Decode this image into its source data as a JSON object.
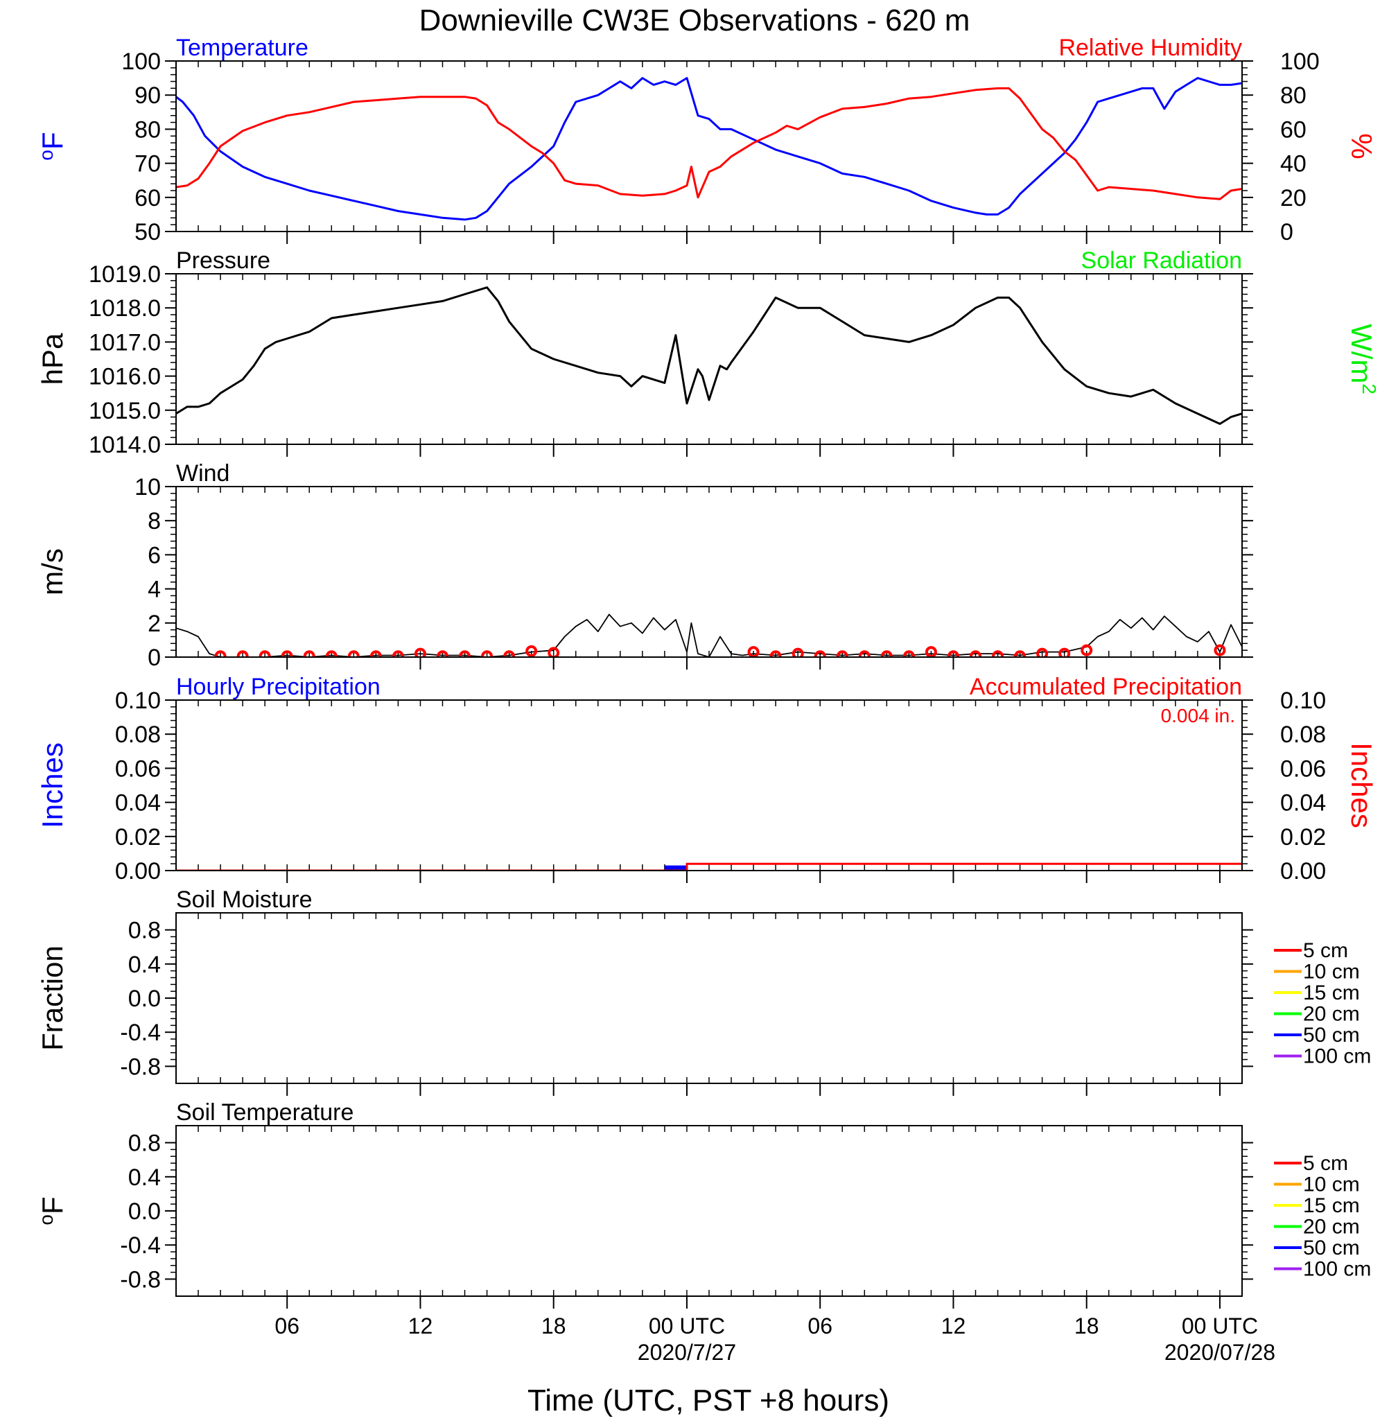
{
  "title": "Downieville CW3E Observations - 620 m",
  "x_axis": {
    "label": "Time (UTC, PST +8 hours)",
    "ticks": [
      {
        "hour": 6,
        "label": "06",
        "date": ""
      },
      {
        "hour": 12,
        "label": "12",
        "date": ""
      },
      {
        "hour": 18,
        "label": "18",
        "date": ""
      },
      {
        "hour": 24,
        "label": "00 UTC",
        "date": "2020/7/27"
      },
      {
        "hour": 30,
        "label": "06",
        "date": ""
      },
      {
        "hour": 36,
        "label": "12",
        "date": ""
      },
      {
        "hour": 42,
        "label": "18",
        "date": ""
      },
      {
        "hour": 48,
        "label": "00 UTC",
        "date": "2020/07/28"
      }
    ]
  },
  "colors": {
    "temperature": "#0000ff",
    "humidity": "#ff0000",
    "solar": "#00ee00",
    "axis": "#000000"
  },
  "chart_data": [
    {
      "type": "line",
      "panel": "temperature-humidity",
      "xlim": [
        1,
        49
      ],
      "left_title": "Temperature",
      "right_title": "Relative Humidity",
      "ylabel": "oF",
      "ylabel_right": "%",
      "ylim": [
        50,
        100
      ],
      "yticks": [
        "50",
        "60",
        "70",
        "80",
        "90",
        "100"
      ],
      "ylim_right": [
        0,
        100
      ],
      "yticks_right": [
        "0",
        "20",
        "40",
        "60",
        "80",
        "100"
      ],
      "series": [
        {
          "name": "Temperature",
          "axis": "left",
          "color": "#0000ff",
          "x": [
            1,
            1.3,
            1.8,
            2.3,
            3,
            4,
            5,
            6,
            7,
            8,
            9,
            10,
            11,
            12,
            13,
            14,
            14.5,
            15,
            15.5,
            16,
            17,
            18,
            18.5,
            19,
            20,
            20.5,
            21,
            21.5,
            22,
            22.5,
            23,
            23.5,
            24,
            24.5,
            25,
            25.5,
            26,
            27,
            28,
            29,
            30,
            31,
            32,
            33,
            34,
            35,
            36,
            37,
            37.5,
            38,
            38.5,
            39,
            40,
            41,
            41.5,
            42,
            42.5,
            43,
            44,
            44.5,
            45,
            45.5,
            46,
            46.5,
            47,
            47.5,
            48,
            48.5,
            49
          ],
          "y": [
            89.5,
            88,
            84,
            78,
            73.5,
            69,
            66,
            64,
            62,
            60.5,
            59,
            57.5,
            56,
            55,
            54,
            53.5,
            54,
            56,
            60,
            64,
            69,
            75,
            82,
            88,
            90,
            92,
            94,
            92,
            95,
            93,
            94,
            93,
            95,
            84,
            83,
            80,
            80,
            77,
            74,
            72,
            70,
            67,
            66,
            64,
            62,
            59,
            57,
            55.5,
            55,
            55,
            57,
            61,
            67,
            73,
            77,
            82,
            88,
            89,
            91,
            92,
            92,
            86,
            91,
            93,
            95,
            94,
            93,
            93,
            93.5
          ]
        },
        {
          "name": "Relative Humidity",
          "axis": "right",
          "color": "#ff0000",
          "x": [
            1,
            1.5,
            2,
            2.5,
            3,
            4,
            5,
            6,
            7,
            8,
            9,
            10,
            11,
            12,
            13,
            14,
            14.5,
            15,
            15.5,
            16,
            17,
            17.5,
            18,
            18.5,
            19,
            20,
            21,
            22,
            23,
            23.5,
            24,
            24.2,
            24.5,
            25,
            25.5,
            26,
            27,
            28,
            28.5,
            29,
            30,
            31,
            32,
            33,
            34,
            35,
            36,
            37,
            38,
            38.5,
            39,
            40,
            40.5,
            41,
            41.5,
            42,
            42.5,
            43,
            44,
            45,
            46,
            47,
            48,
            48.5,
            49
          ],
          "y": [
            26,
            27,
            31,
            40,
            50,
            59,
            64,
            68,
            70,
            73,
            76,
            77,
            78,
            79,
            79,
            79,
            78,
            74,
            64,
            60,
            50,
            46,
            40,
            30,
            28,
            27,
            22,
            21,
            22,
            24,
            27,
            38,
            20,
            35,
            38,
            44,
            52,
            58,
            62,
            60,
            67,
            72,
            73,
            75,
            78,
            79,
            81,
            83,
            84,
            84,
            78,
            60,
            55,
            47,
            42,
            33,
            24,
            26,
            25,
            24,
            22,
            20,
            19,
            24,
            25
          ]
        }
      ]
    },
    {
      "type": "line",
      "panel": "pressure",
      "xlim": [
        1,
        49
      ],
      "left_title": "Pressure",
      "right_title": "Solar Radiation",
      "ylabel": "hPa",
      "ylabel_right": "W/m2",
      "ylim": [
        1014.0,
        1019.0
      ],
      "yticks": [
        "1014.0",
        "1015.0",
        "1016.0",
        "1017.0",
        "1018.0",
        "1019.0"
      ],
      "series": [
        {
          "name": "Pressure",
          "axis": "left",
          "color": "#000000",
          "x": [
            1,
            1.5,
            2,
            2.5,
            3,
            3.5,
            4,
            4.5,
            5,
            5.5,
            6,
            7,
            8,
            9,
            10,
            11,
            12,
            13,
            14,
            15,
            15.5,
            16,
            17,
            18,
            19,
            20,
            21,
            21.5,
            22,
            23,
            23.5,
            24,
            24.5,
            24.7,
            25,
            25.5,
            25.8,
            26,
            27,
            28,
            29,
            30,
            31,
            32,
            33,
            34,
            35,
            36,
            37,
            38,
            38.5,
            39,
            40,
            41,
            42,
            43,
            44,
            45,
            46,
            47,
            48,
            48.5,
            49
          ],
          "y": [
            1014.9,
            1015.1,
            1015.1,
            1015.2,
            1015.5,
            1015.7,
            1015.9,
            1016.3,
            1016.8,
            1017.0,
            1017.1,
            1017.3,
            1017.7,
            1017.8,
            1017.9,
            1018.0,
            1018.1,
            1018.2,
            1018.4,
            1018.6,
            1018.2,
            1017.6,
            1016.8,
            1016.5,
            1016.3,
            1016.1,
            1016.0,
            1015.7,
            1016.0,
            1015.8,
            1017.2,
            1015.2,
            1016.2,
            1016.0,
            1015.3,
            1016.3,
            1016.2,
            1016.4,
            1017.3,
            1018.3,
            1018.0,
            1018.0,
            1017.6,
            1017.2,
            1017.1,
            1017.0,
            1017.2,
            1017.5,
            1018.0,
            1018.3,
            1018.3,
            1018.0,
            1017.0,
            1016.2,
            1015.7,
            1015.5,
            1015.4,
            1015.6,
            1015.2,
            1014.9,
            1014.6,
            1014.8,
            1014.9
          ]
        }
      ]
    },
    {
      "type": "line",
      "panel": "wind",
      "xlim": [
        1,
        49
      ],
      "left_title": "Wind",
      "ylabel": "m/s",
      "ylim": [
        0,
        10
      ],
      "yticks": [
        "0",
        "2",
        "4",
        "6",
        "8",
        "10"
      ],
      "series": [
        {
          "name": "Wind",
          "axis": "left",
          "color": "#000000",
          "x": [
            1,
            1.5,
            2,
            2.5,
            3,
            4,
            5,
            6,
            7,
            8,
            9,
            10,
            11,
            12,
            13,
            14,
            15,
            16,
            17,
            18,
            18.5,
            19,
            19.5,
            20,
            20.5,
            21,
            21.5,
            22,
            22.5,
            23,
            23.5,
            24,
            24.2,
            24.5,
            25,
            25.5,
            26,
            26.5,
            27,
            28,
            29,
            30,
            31,
            32,
            33,
            34,
            35,
            36,
            37,
            38,
            39,
            40,
            41,
            42,
            42.5,
            43,
            43.5,
            44,
            44.5,
            45,
            45.5,
            46,
            46.5,
            47,
            47.5,
            48,
            48.5,
            49
          ],
          "y": [
            1.7,
            1.5,
            1.2,
            0.2,
            0.0,
            0.0,
            0.0,
            0.1,
            0.0,
            0.1,
            0.0,
            0.1,
            0.1,
            0.2,
            0.1,
            0.1,
            0.0,
            0.1,
            0.3,
            0.4,
            1.2,
            1.8,
            2.2,
            1.5,
            2.5,
            1.8,
            2.0,
            1.4,
            2.3,
            1.6,
            2.2,
            0.3,
            2.0,
            0.2,
            0.0,
            1.2,
            0.2,
            0.1,
            0.2,
            0.1,
            0.3,
            0.2,
            0.1,
            0.2,
            0.1,
            0.1,
            0.2,
            0.1,
            0.2,
            0.2,
            0.1,
            0.3,
            0.3,
            0.6,
            1.2,
            1.5,
            2.2,
            1.7,
            2.3,
            1.6,
            2.4,
            1.8,
            1.2,
            0.9,
            1.5,
            0.3,
            1.9,
            0.6
          ]
        },
        {
          "name": "Hourly wind",
          "axis": "left",
          "color": "#ff0000",
          "x": [
            3,
            4,
            5,
            6,
            7,
            8,
            9,
            10,
            11,
            12,
            13,
            14,
            15,
            16,
            17,
            18,
            27,
            28,
            29,
            30,
            31,
            32,
            33,
            34,
            35,
            36,
            37,
            38,
            39,
            40,
            41,
            42,
            48
          ],
          "y": [
            0.05,
            0.05,
            0.05,
            0.05,
            0.05,
            0.05,
            0.05,
            0.05,
            0.05,
            0.2,
            0.05,
            0.05,
            0.05,
            0.05,
            0.35,
            0.25,
            0.3,
            0.05,
            0.2,
            0.05,
            0.05,
            0.05,
            0.05,
            0.05,
            0.3,
            0.05,
            0.05,
            0.05,
            0.05,
            0.2,
            0.2,
            0.4,
            0.4
          ]
        }
      ]
    },
    {
      "type": "line",
      "panel": "precipitation",
      "xlim": [
        1,
        49
      ],
      "left_title": "Hourly Precipitation",
      "right_title": "Accumulated Precipitation",
      "annotation": "0.004 in.",
      "ylabel": "Inches",
      "ylabel_right": "Inches",
      "ylim": [
        0.0,
        0.1
      ],
      "yticks": [
        "0.00",
        "0.02",
        "0.04",
        "0.06",
        "0.08",
        "0.10"
      ],
      "ylim_right": [
        0.0,
        0.1
      ],
      "yticks_right": [
        "0.00",
        "0.02",
        "0.04",
        "0.06",
        "0.08",
        "0.10"
      ],
      "series": [
        {
          "name": "Hourly Precipitation",
          "axis": "left",
          "color": "#0000ff",
          "x": [
            23.5
          ],
          "y": [
            0.003
          ]
        },
        {
          "name": "Accumulated Precipitation",
          "axis": "right",
          "color": "#ff0000",
          "x": [
            1,
            24,
            24,
            49
          ],
          "y": [
            0.0,
            0.0,
            0.004,
            0.004
          ]
        }
      ]
    },
    {
      "type": "line",
      "panel": "soil-moisture",
      "xlim": [
        1,
        49
      ],
      "left_title": "Soil Moisture",
      "ylabel": "Fraction",
      "ylim": [
        -1.0,
        1.0
      ],
      "yticks": [
        "-0.8",
        "-0.4",
        "0.0",
        "0.4",
        "0.8"
      ],
      "legend": [
        {
          "label": "5 cm",
          "color": "#ff0000"
        },
        {
          "label": "10 cm",
          "color": "#ffa500"
        },
        {
          "label": "15 cm",
          "color": "#ffff00"
        },
        {
          "label": "20 cm",
          "color": "#00ff00"
        },
        {
          "label": "50 cm",
          "color": "#0000ff"
        },
        {
          "label": "100 cm",
          "color": "#a020f0"
        }
      ],
      "series": []
    },
    {
      "type": "line",
      "panel": "soil-temperature",
      "xlim": [
        1,
        49
      ],
      "left_title": "Soil Temperature",
      "ylabel": "oF",
      "ylim": [
        -1.0,
        1.0
      ],
      "yticks": [
        "-0.8",
        "-0.4",
        "0.0",
        "0.4",
        "0.8"
      ],
      "legend": [
        {
          "label": "5 cm",
          "color": "#ff0000"
        },
        {
          "label": "10 cm",
          "color": "#ffa500"
        },
        {
          "label": "15 cm",
          "color": "#ffff00"
        },
        {
          "label": "20 cm",
          "color": "#00ff00"
        },
        {
          "label": "50 cm",
          "color": "#0000ff"
        },
        {
          "label": "100 cm",
          "color": "#a020f0"
        }
      ],
      "series": []
    }
  ]
}
